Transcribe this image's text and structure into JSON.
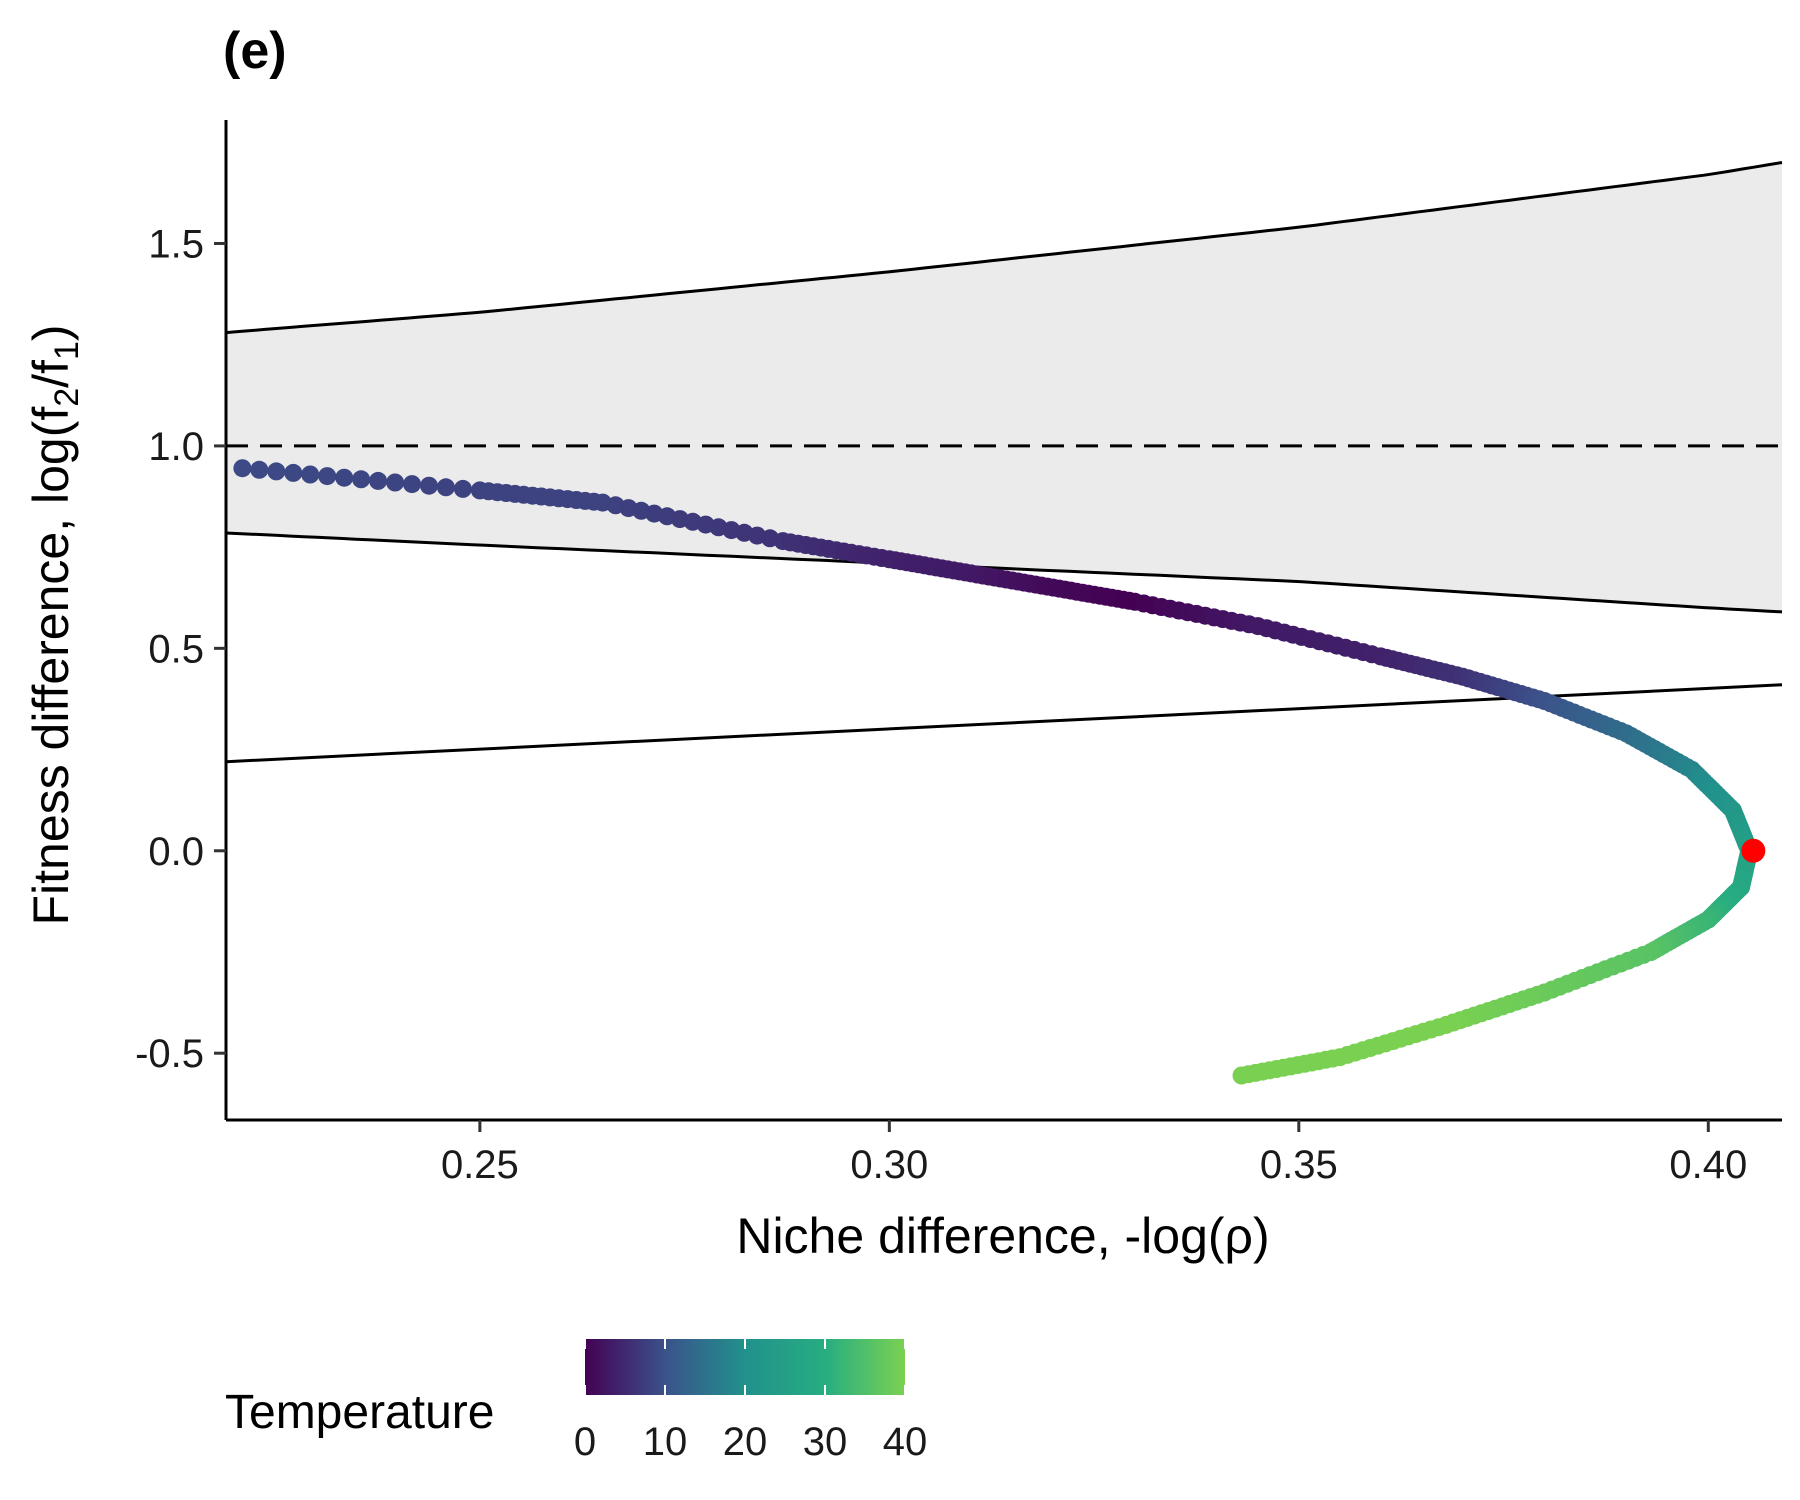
{
  "chart_data": {
    "type": "scatter",
    "title": "(e)",
    "xlabel": "Niche difference, -log(ρ)",
    "ylabel_parts": {
      "prefix": "Fitness difference, log(f",
      "sub1": "2",
      "mid": "/f",
      "sub2": "1",
      "suffix": ")"
    },
    "xlim": [
      0.219,
      0.409
    ],
    "ylim": [
      -0.665,
      1.805
    ],
    "x_ticks": [
      0.25,
      0.3,
      0.35,
      0.4
    ],
    "x_tick_labels": [
      "0.25",
      "0.30",
      "0.35",
      "0.40"
    ],
    "y_ticks": [
      -0.5,
      0.0,
      0.5,
      1.0,
      1.5
    ],
    "y_tick_labels": [
      "-0.5",
      "0.0",
      "0.5",
      "1.0",
      "1.5"
    ],
    "grid": false,
    "reference_line": {
      "y": 1.0,
      "style": "dashed"
    },
    "boundary_curves": {
      "upper": [
        [
          0.219,
          1.28
        ],
        [
          0.25,
          1.33
        ],
        [
          0.3,
          1.43
        ],
        [
          0.35,
          1.54
        ],
        [
          0.4,
          1.67
        ],
        [
          0.409,
          1.7
        ]
      ],
      "lower": [
        [
          0.219,
          0.785
        ],
        [
          0.25,
          0.755
        ],
        [
          0.3,
          0.71
        ],
        [
          0.35,
          0.665
        ],
        [
          0.4,
          0.6
        ],
        [
          0.409,
          0.59
        ]
      ],
      "lower_line": [
        [
          0.219,
          0.22
        ],
        [
          0.409,
          0.41
        ]
      ],
      "fill_color": "#ebebeb"
    },
    "trajectory": {
      "color_variable": "Temperature",
      "points": [
        {
          "x": 0.221,
          "y": 0.945,
          "t": 9
        },
        {
          "x": 0.25,
          "y": 0.89,
          "t": 8
        },
        {
          "x": 0.265,
          "y": 0.86,
          "t": 8
        },
        {
          "x": 0.287,
          "y": 0.765,
          "t": 6
        },
        {
          "x": 0.3,
          "y": 0.72,
          "t": 4
        },
        {
          "x": 0.31,
          "y": 0.685,
          "t": 3
        },
        {
          "x": 0.32,
          "y": 0.65,
          "t": 1
        },
        {
          "x": 0.33,
          "y": 0.615,
          "t": 0
        },
        {
          "x": 0.345,
          "y": 0.555,
          "t": 3
        },
        {
          "x": 0.36,
          "y": 0.48,
          "t": 4
        },
        {
          "x": 0.37,
          "y": 0.43,
          "t": 6
        },
        {
          "x": 0.38,
          "y": 0.37,
          "t": 10
        },
        {
          "x": 0.39,
          "y": 0.29,
          "t": 14
        },
        {
          "x": 0.398,
          "y": 0.2,
          "t": 18
        },
        {
          "x": 0.403,
          "y": 0.1,
          "t": 22
        },
        {
          "x": 0.405,
          "y": 0.0,
          "t": 25
        },
        {
          "x": 0.404,
          "y": -0.09,
          "t": 28
        },
        {
          "x": 0.4,
          "y": -0.17,
          "t": 32
        },
        {
          "x": 0.393,
          "y": -0.25,
          "t": 36
        },
        {
          "x": 0.38,
          "y": -0.35,
          "t": 38
        },
        {
          "x": 0.368,
          "y": -0.43,
          "t": 40
        },
        {
          "x": 0.355,
          "y": -0.51,
          "t": 40
        },
        {
          "x": 0.343,
          "y": -0.555,
          "t": 41
        }
      ]
    },
    "highlight_point": {
      "x": 0.4055,
      "y": 0.0,
      "color": "#ff0000"
    },
    "legend": {
      "title": "Temperature",
      "position": "bottom-left",
      "range": [
        0,
        40
      ],
      "ticks": [
        0,
        10,
        20,
        30,
        40
      ],
      "tick_labels": [
        "0",
        "10",
        "20",
        "30",
        "40"
      ],
      "palette": [
        "#440154",
        "#3b528b",
        "#21918c",
        "#27ad81",
        "#7ad151"
      ]
    }
  }
}
